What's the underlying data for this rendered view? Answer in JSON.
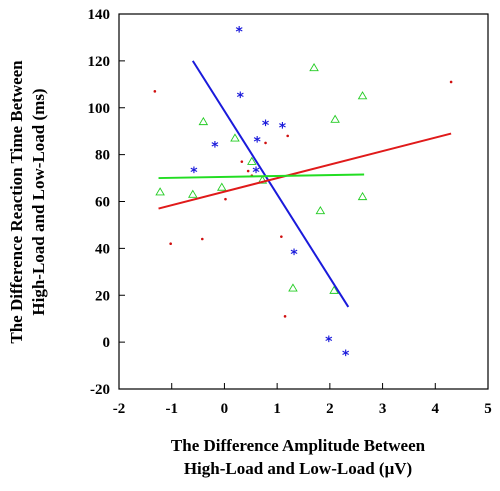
{
  "chart_data": {
    "type": "scatter",
    "xlabel_lines": [
      "The Difference Amplitude Between",
      "High-Load and Low-Load (μV)"
    ],
    "ylabel_lines": [
      "The Difference Reaction Time Between",
      "High-Load and Low-Load (ms)"
    ],
    "xlim": [
      -2,
      5
    ],
    "ylim": [
      -20,
      140
    ],
    "x_ticks": [
      -2,
      -1,
      0,
      1,
      2,
      3,
      4,
      5
    ],
    "y_ticks": [
      -20,
      0,
      20,
      40,
      60,
      80,
      100,
      120,
      140
    ],
    "grid": false,
    "legend": "none",
    "series": [
      {
        "marker": "asterisk",
        "color": "#1a1adb",
        "points": [
          [
            0.28,
            133
          ],
          [
            0.3,
            105
          ],
          [
            -0.58,
            73
          ],
          [
            -0.18,
            84
          ],
          [
            0.62,
            86
          ],
          [
            0.78,
            93
          ],
          [
            1.1,
            92
          ],
          [
            0.6,
            73
          ],
          [
            1.32,
            38
          ],
          [
            1.98,
            1
          ],
          [
            2.3,
            -5
          ]
        ]
      },
      {
        "marker": "dot",
        "color": "#d01010",
        "points": [
          [
            -1.32,
            107
          ],
          [
            -1.02,
            42
          ],
          [
            -0.42,
            44
          ],
          [
            0.02,
            61
          ],
          [
            0.33,
            77
          ],
          [
            0.45,
            73
          ],
          [
            0.78,
            85
          ],
          [
            0.52,
            71
          ],
          [
            1.08,
            45
          ],
          [
            1.2,
            88
          ],
          [
            1.15,
            11
          ],
          [
            4.3,
            111
          ]
        ]
      },
      {
        "marker": "triangle",
        "color": "#22cc22",
        "points": [
          [
            -1.22,
            64
          ],
          [
            -0.6,
            63
          ],
          [
            -0.05,
            66
          ],
          [
            -0.4,
            94
          ],
          [
            0.2,
            87
          ],
          [
            0.52,
            77
          ],
          [
            0.72,
            69
          ],
          [
            1.3,
            23
          ],
          [
            1.7,
            117
          ],
          [
            1.82,
            56
          ],
          [
            2.1,
            95
          ],
          [
            2.08,
            22
          ],
          [
            2.62,
            105
          ],
          [
            2.62,
            62
          ]
        ]
      }
    ],
    "lines": [
      {
        "color": "#1a1adb",
        "x1": -0.6,
        "y1": 120,
        "x2": 2.35,
        "y2": 15
      },
      {
        "color": "#e01a1a",
        "x1": -1.25,
        "y1": 57,
        "x2": 4.3,
        "y2": 89
      },
      {
        "color": "#22dd22",
        "x1": -1.25,
        "y1": 70,
        "x2": 2.65,
        "y2": 71.5
      }
    ]
  }
}
